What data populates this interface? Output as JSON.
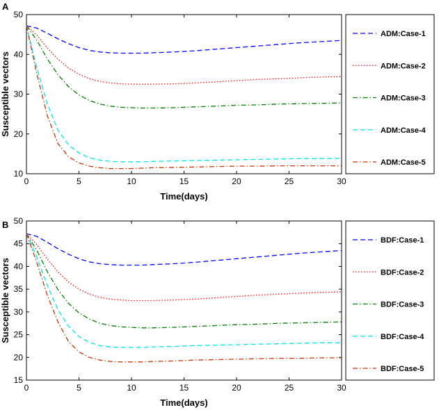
{
  "chart_data": [
    {
      "panel": "A",
      "type": "line",
      "xlabel": "Time(days)",
      "ylabel": "Susceptible vectors",
      "xlim": [
        0,
        30
      ],
      "ylim": [
        10,
        50
      ],
      "xticks": [
        0,
        5,
        10,
        15,
        20,
        25,
        30
      ],
      "yticks": [
        10,
        20,
        30,
        40,
        50
      ],
      "legend_position": "right",
      "series": [
        {
          "name": "ADM:Case-1",
          "color": "#0000ff",
          "style": "dashed",
          "x": [
            0,
            1,
            2,
            3,
            4,
            5,
            6,
            7,
            8,
            9,
            10,
            11,
            12,
            14,
            16,
            18,
            20,
            22,
            24,
            26,
            28,
            30
          ],
          "y": [
            47.2,
            46.6,
            45.3,
            43.9,
            42.7,
            41.7,
            41.0,
            40.6,
            40.4,
            40.3,
            40.3,
            40.3,
            40.4,
            40.6,
            40.9,
            41.3,
            41.7,
            42.1,
            42.5,
            42.9,
            43.2,
            43.5
          ]
        },
        {
          "name": "ADM:Case-2",
          "color": "#ff0000",
          "style": "dotted",
          "x": [
            0,
            1,
            2,
            3,
            4,
            5,
            6,
            7,
            8,
            9,
            10,
            11,
            12,
            14,
            16,
            18,
            20,
            22,
            24,
            26,
            28,
            30
          ],
          "y": [
            47.2,
            44.8,
            41.6,
            38.8,
            36.6,
            35.0,
            33.9,
            33.2,
            32.8,
            32.6,
            32.5,
            32.5,
            32.5,
            32.6,
            32.8,
            33.1,
            33.4,
            33.7,
            33.9,
            34.1,
            34.3,
            34.4
          ]
        },
        {
          "name": "ADM:Case-3",
          "color": "#007f00",
          "style": "dashdot",
          "x": [
            0,
            1,
            2,
            3,
            4,
            5,
            6,
            7,
            8,
            9,
            10,
            11,
            12,
            14,
            16,
            18,
            20,
            22,
            24,
            26,
            28,
            30
          ],
          "y": [
            47.2,
            43.5,
            38.8,
            34.9,
            31.9,
            29.8,
            28.4,
            27.5,
            27.0,
            26.7,
            26.6,
            26.5,
            26.5,
            26.6,
            26.8,
            27.0,
            27.2,
            27.3,
            27.5,
            27.6,
            27.7,
            27.8
          ]
        },
        {
          "name": "ADM:Case-4",
          "color": "#00e5e5",
          "style": "dashed",
          "x": [
            0,
            1,
            2,
            3,
            4,
            5,
            6,
            7,
            8,
            9,
            10,
            11,
            12,
            14,
            16,
            18,
            20,
            22,
            24,
            26,
            28,
            30
          ],
          "y": [
            47.2,
            36.5,
            27.5,
            21.0,
            17.3,
            15.2,
            14.0,
            13.4,
            13.1,
            13.0,
            13.0,
            13.0,
            13.1,
            13.2,
            13.3,
            13.4,
            13.5,
            13.6,
            13.7,
            13.8,
            13.8,
            13.9
          ]
        },
        {
          "name": "ADM:Case-5",
          "color": "#cc3300",
          "style": "dashdot",
          "x": [
            0,
            1,
            2,
            3,
            4,
            5,
            6,
            7,
            8,
            9,
            10,
            11,
            12,
            14,
            16,
            18,
            20,
            22,
            24,
            26,
            28,
            30
          ],
          "y": [
            47.2,
            35.0,
            24.5,
            17.6,
            14.3,
            12.7,
            11.9,
            11.5,
            11.3,
            11.3,
            11.3,
            11.4,
            11.5,
            11.6,
            11.7,
            11.8,
            11.9,
            11.9,
            12.0,
            12.0,
            12.0,
            12.0
          ]
        }
      ]
    },
    {
      "panel": "B",
      "type": "line",
      "xlabel": "Time(days)",
      "ylabel": "Susceptible vectors",
      "xlim": [
        0,
        30
      ],
      "ylim": [
        15,
        50
      ],
      "xticks": [
        0,
        5,
        10,
        15,
        20,
        25,
        30
      ],
      "yticks": [
        15,
        20,
        25,
        30,
        35,
        40,
        45,
        50
      ],
      "legend_position": "right",
      "series": [
        {
          "name": "BDF:Case-1",
          "color": "#0000ff",
          "style": "dashed",
          "x": [
            0,
            1,
            2,
            3,
            4,
            5,
            6,
            7,
            8,
            9,
            10,
            11,
            12,
            14,
            16,
            18,
            20,
            22,
            24,
            26,
            28,
            30
          ],
          "y": [
            47.2,
            46.6,
            45.3,
            43.9,
            42.7,
            41.7,
            41.0,
            40.6,
            40.4,
            40.3,
            40.3,
            40.3,
            40.4,
            40.6,
            40.9,
            41.3,
            41.7,
            42.1,
            42.5,
            42.9,
            43.2,
            43.5
          ]
        },
        {
          "name": "BDF:Case-2",
          "color": "#ff0000",
          "style": "dotted",
          "x": [
            0,
            1,
            2,
            3,
            4,
            5,
            6,
            7,
            8,
            9,
            10,
            11,
            12,
            14,
            16,
            18,
            20,
            22,
            24,
            26,
            28,
            30
          ],
          "y": [
            47.2,
            44.8,
            41.6,
            38.8,
            36.6,
            35.0,
            33.9,
            33.2,
            32.8,
            32.6,
            32.5,
            32.5,
            32.5,
            32.6,
            32.8,
            33.1,
            33.4,
            33.7,
            33.9,
            34.1,
            34.3,
            34.4
          ]
        },
        {
          "name": "BDF:Case-3",
          "color": "#007f00",
          "style": "dashdot",
          "x": [
            0,
            1,
            2,
            3,
            4,
            5,
            6,
            7,
            8,
            9,
            10,
            11,
            12,
            14,
            16,
            18,
            20,
            22,
            24,
            26,
            28,
            30
          ],
          "y": [
            47.2,
            43.5,
            38.8,
            34.9,
            31.9,
            29.8,
            28.4,
            27.5,
            27.0,
            26.7,
            26.6,
            26.5,
            26.5,
            26.6,
            26.8,
            27.0,
            27.2,
            27.3,
            27.5,
            27.6,
            27.7,
            27.8
          ]
        },
        {
          "name": "BDF:Case-4",
          "color": "#00e5e5",
          "style": "dashed",
          "x": [
            0,
            1,
            2,
            3,
            4,
            5,
            6,
            7,
            8,
            9,
            10,
            11,
            12,
            14,
            16,
            18,
            20,
            22,
            24,
            26,
            28,
            30
          ],
          "y": [
            47.2,
            42.0,
            35.8,
            30.5,
            26.9,
            24.6,
            23.3,
            22.6,
            22.3,
            22.2,
            22.2,
            22.2,
            22.3,
            22.4,
            22.6,
            22.7,
            22.8,
            22.9,
            23.0,
            23.1,
            23.2,
            23.2
          ]
        },
        {
          "name": "BDF:Case-5",
          "color": "#cc3300",
          "style": "dashdot",
          "x": [
            0,
            1,
            2,
            3,
            4,
            5,
            6,
            7,
            8,
            9,
            10,
            11,
            12,
            14,
            16,
            18,
            20,
            22,
            24,
            26,
            28,
            30
          ],
          "y": [
            47.2,
            40.8,
            33.6,
            27.8,
            23.5,
            21.2,
            20.0,
            19.4,
            19.1,
            19.0,
            19.0,
            19.0,
            19.1,
            19.2,
            19.4,
            19.5,
            19.6,
            19.7,
            19.8,
            19.8,
            19.9,
            19.9
          ]
        }
      ]
    }
  ]
}
